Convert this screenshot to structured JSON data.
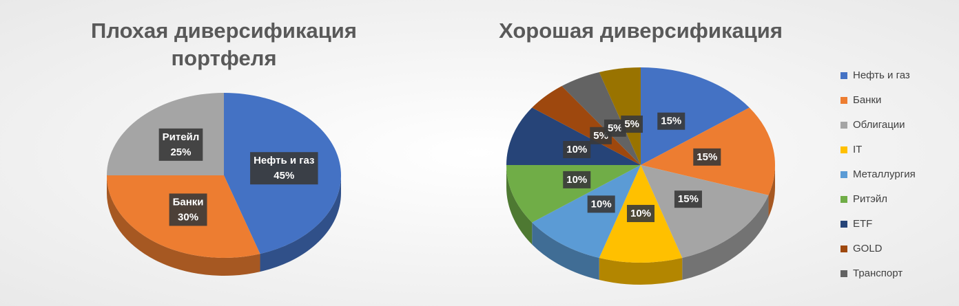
{
  "chart_data": [
    {
      "type": "pie",
      "title": "Плохая диверсификация портфеля",
      "categories": [
        "Нефть и газ",
        "Банки",
        "Ритейл"
      ],
      "values": [
        45,
        30,
        25
      ],
      "value_labels": [
        "45%",
        "30%",
        "25%"
      ],
      "colors": [
        "#4472c4",
        "#ed7d31",
        "#a5a5a5"
      ],
      "show_category_in_label": true
    },
    {
      "type": "pie",
      "title": "Хорошая диверсификация",
      "categories": [
        "Нефть и газ",
        "Банки",
        "Облигации",
        "IT",
        "Металлургия",
        "Ритэйл",
        "ETF",
        "GOLD",
        "Транспорт",
        null
      ],
      "values": [
        15,
        15,
        15,
        10,
        10,
        10,
        10,
        5,
        5,
        5
      ],
      "value_labels": [
        "15%",
        "15%",
        "15%",
        "10%",
        "10%",
        "10%",
        "10%",
        "5%",
        "5%",
        "5%"
      ],
      "colors": [
        "#4472c4",
        "#ed7d31",
        "#a5a5a5",
        "#ffc000",
        "#5b9bd5",
        "#70ad47",
        "#264478",
        "#9e480e",
        "#636363",
        "#997300"
      ],
      "legend": "right",
      "show_category_in_label": false
    }
  ]
}
